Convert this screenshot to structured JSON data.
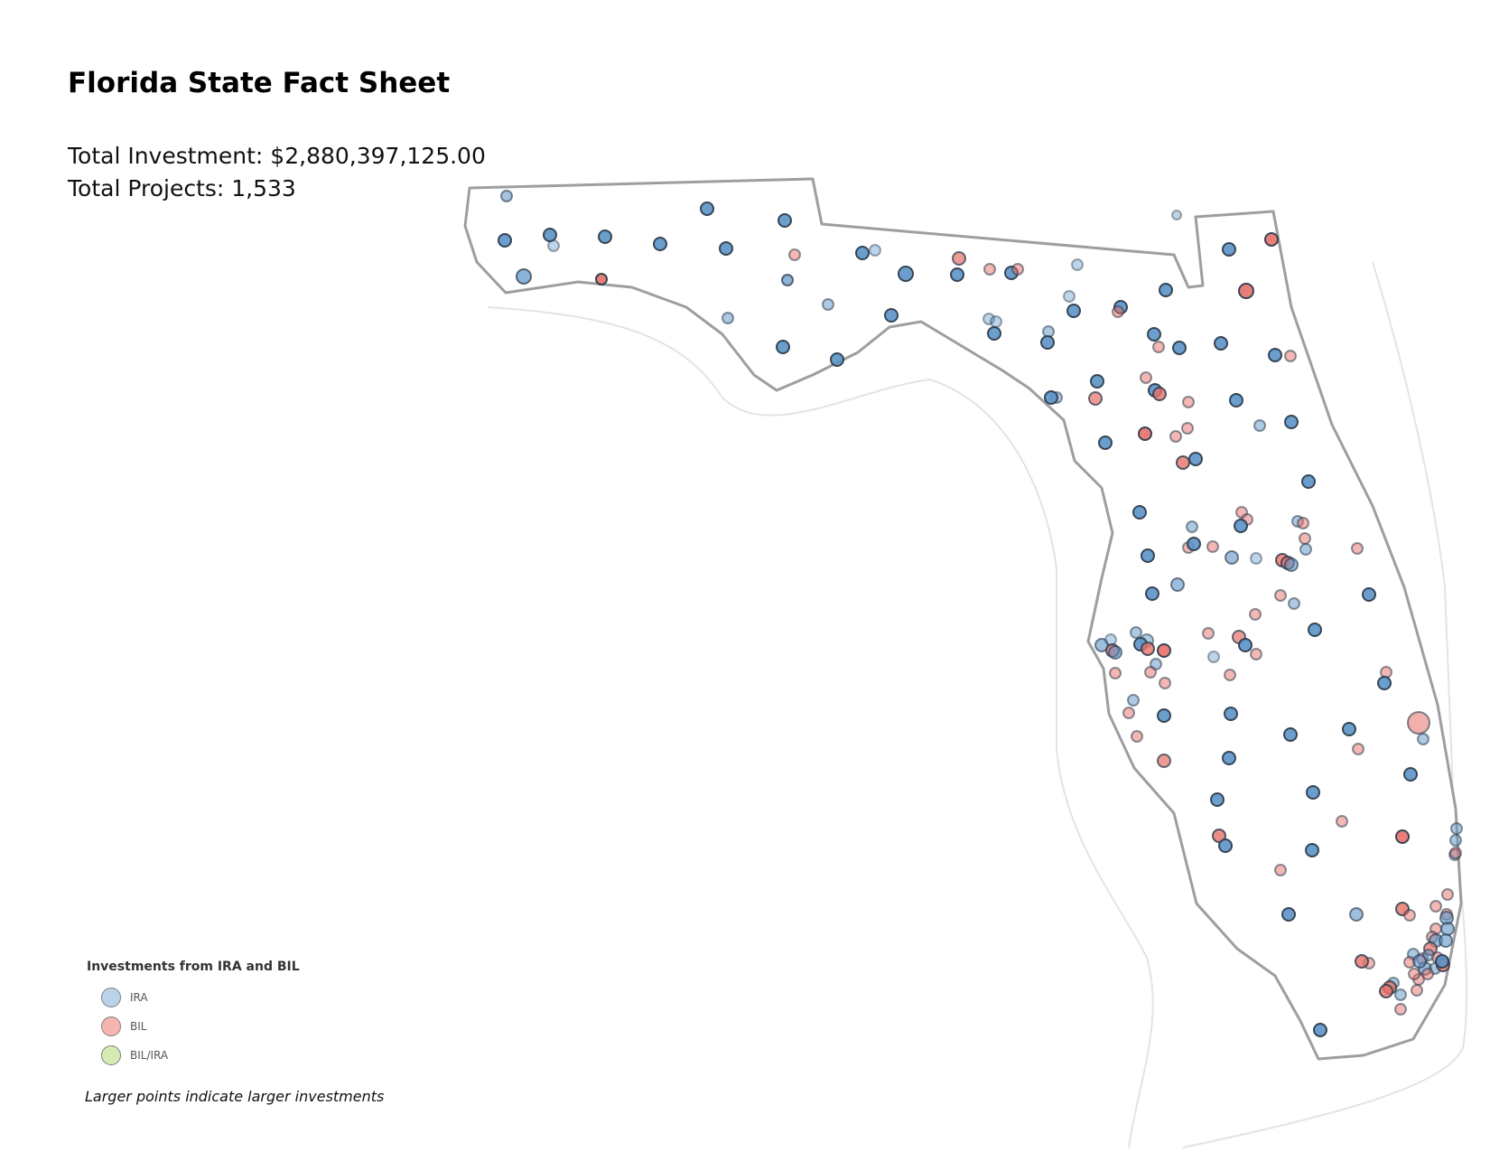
{
  "header": {
    "title": "Florida State Fact Sheet",
    "total_investment": "Total Investment: $2,880,397,125.00",
    "total_projects": "Total Projects: 1,533"
  },
  "legend": {
    "title": "Investments from IRA and BIL",
    "items": [
      {
        "label": "IRA",
        "color": "#b9d3ea"
      },
      {
        "label": "BIL",
        "color": "#f6b6b0"
      },
      {
        "label": "BIL/IRA",
        "color": "#d4ecb4"
      }
    ],
    "note": "Larger points indicate larger investments"
  },
  "map": {
    "region": "Florida",
    "colors": {
      "IRA": "#5b93c7",
      "BIL": "#e7706a",
      "outline": "#9e9e9e"
    }
  }
}
